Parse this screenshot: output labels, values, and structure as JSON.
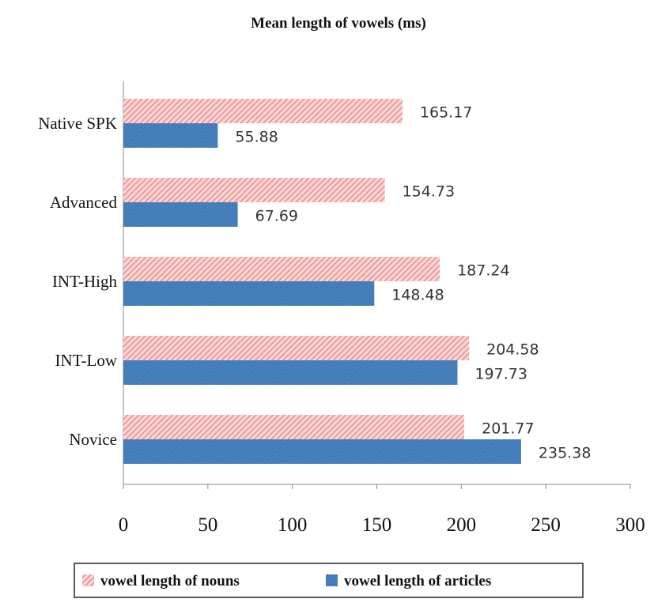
{
  "chart_data": {
    "type": "bar",
    "orientation": "horizontal",
    "title": "Mean length of vowels (ms)",
    "categories": [
      "Native SPK",
      "Advanced",
      "INT-High",
      "INT-Low",
      "Novice"
    ],
    "series": [
      {
        "name": "vowel length of nouns",
        "values": [
          165.17,
          154.73,
          187.24,
          204.58,
          201.77
        ],
        "labels": [
          "165.17",
          "154.73",
          "187.24",
          "204.58",
          "201.77"
        ],
        "color": "#f4aaaa",
        "pattern": "diagonal-hatch"
      },
      {
        "name": "vowel length of articles",
        "values": [
          55.88,
          67.69,
          148.48,
          197.73,
          235.38
        ],
        "labels": [
          "55.88",
          "67.69",
          "148.48",
          "197.73",
          "235.38"
        ],
        "color": "#3a78b8",
        "pattern": "fine-hatch"
      }
    ],
    "xlim": [
      0,
      300
    ],
    "xticks": [
      "0",
      "50",
      "100",
      "150",
      "200",
      "250",
      "300"
    ],
    "xlabel": "",
    "ylabel": "",
    "grid": false,
    "legend_position": "bottom"
  }
}
